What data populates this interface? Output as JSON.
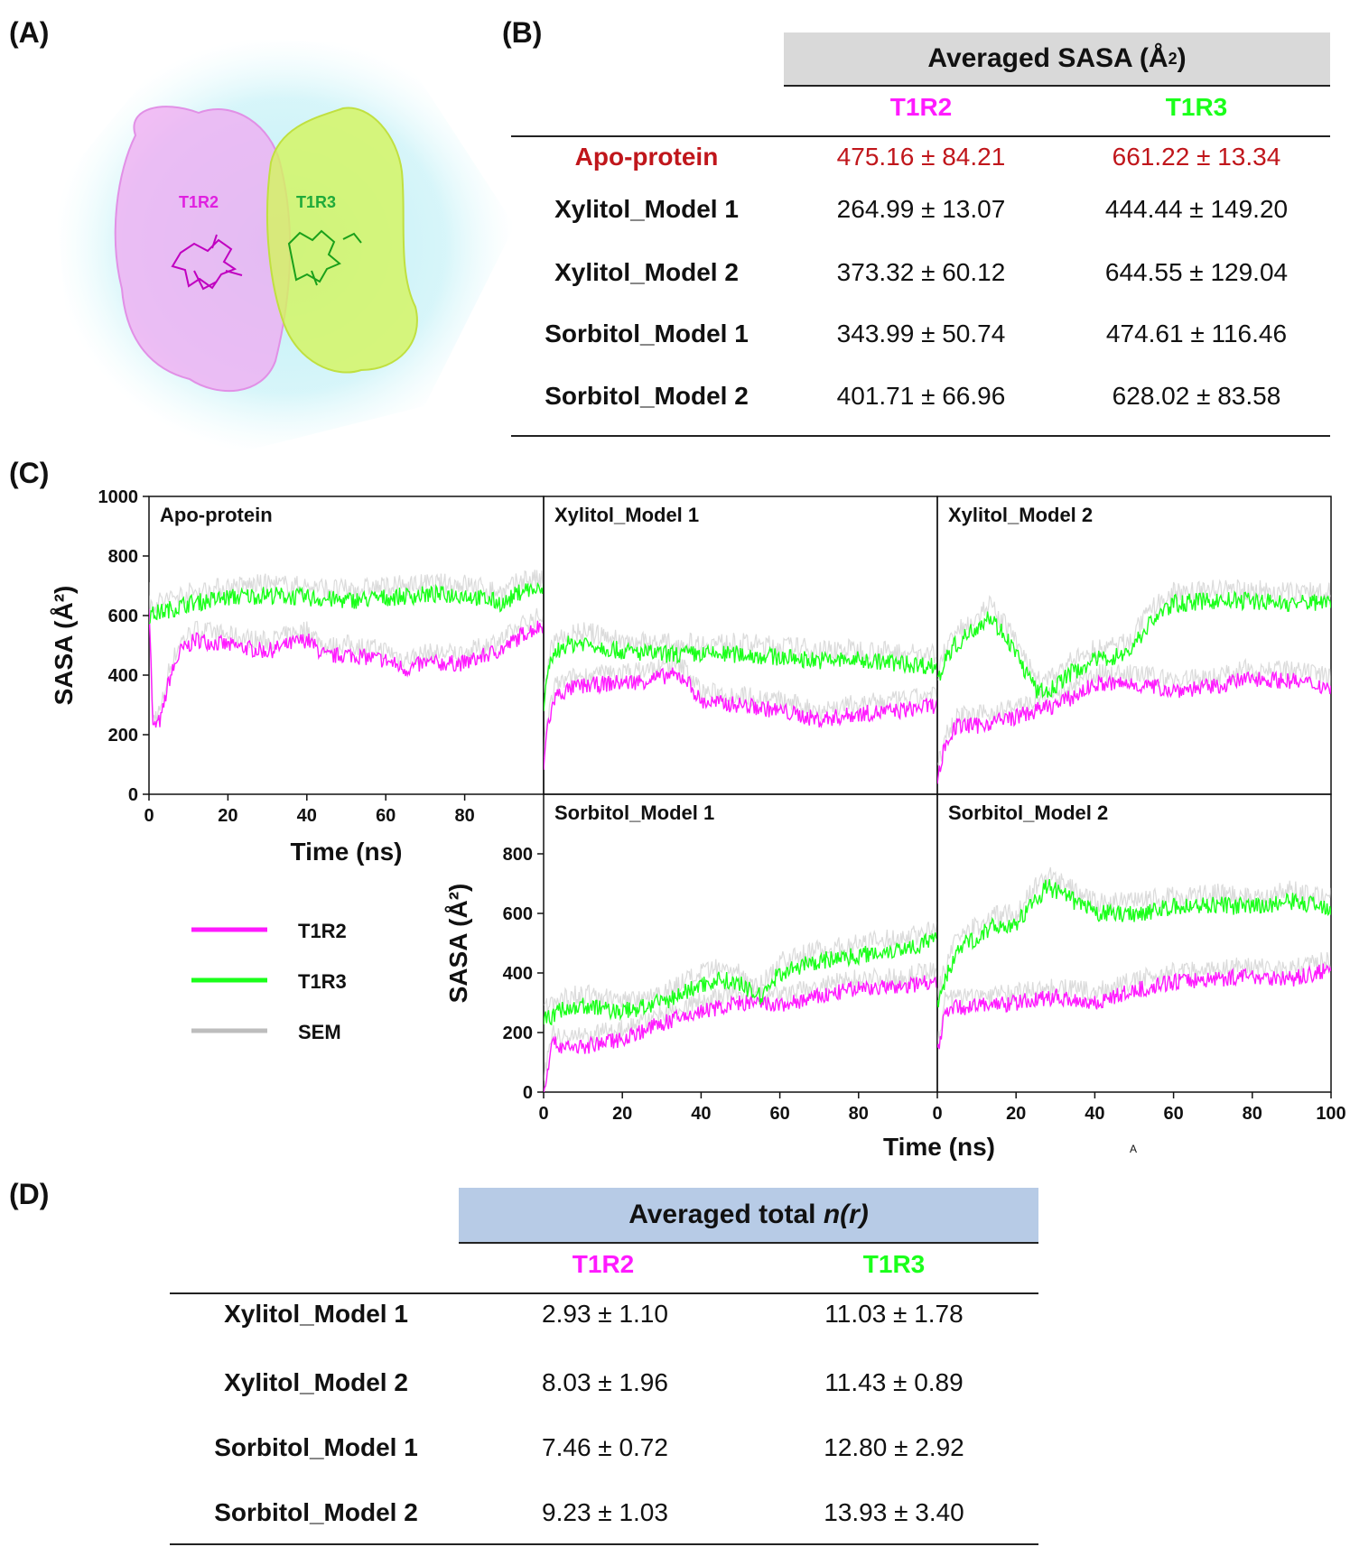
{
  "panels": {
    "a": "(A)",
    "b": "(B)",
    "c": "(C)",
    "d": "(D)"
  },
  "colors": {
    "t1r2": "#ff1aff",
    "t1r3": "#1aff1a",
    "sem": "#bdbdbd",
    "apo": "#c0161b",
    "headerB": "#d9d9d9",
    "headerD": "#b7cbe6"
  },
  "structure": {
    "t1r2_label": "T1R2",
    "t1r3_label": "T1R3"
  },
  "tableB": {
    "header_text": "Averaged SASA (Å",
    "header_sup": "2",
    "header_close": ")",
    "col1": "T1R2",
    "col2": "T1R3",
    "rows": [
      {
        "label": "Apo-protein",
        "t1r2": "475.16 ± 84.21",
        "t1r3": "661.22 ± 13.34"
      },
      {
        "label": "Xylitol_Model 1",
        "t1r2": "264.99 ± 13.07",
        "t1r3": "444.44 ± 149.20"
      },
      {
        "label": "Xylitol_Model 2",
        "t1r2": "373.32 ± 60.12",
        "t1r3": "644.55 ± 129.04"
      },
      {
        "label": "Sorbitol_Model 1",
        "t1r2": "343.99 ± 50.74",
        "t1r3": "474.61 ± 116.46"
      },
      {
        "label": "Sorbitol_Model 2",
        "t1r2": "401.71 ± 66.96",
        "t1r3": "628.02 ± 83.58"
      }
    ]
  },
  "tableD": {
    "header_text": "Averaged total ",
    "header_italic": "n(r)",
    "col1": "T1R2",
    "col2": "T1R3",
    "rows": [
      {
        "label": "Xylitol_Model 1",
        "t1r2": "2.93 ± 1.10",
        "t1r3": "11.03 ± 1.78"
      },
      {
        "label": "Xylitol_Model 2",
        "t1r2": "8.03 ± 1.96",
        "t1r3": "11.43 ± 0.89"
      },
      {
        "label": "Sorbitol_Model 1",
        "t1r2": "7.46 ± 0.72",
        "t1r3": "12.80 ± 2.92"
      },
      {
        "label": "Sorbitol_Model 2",
        "t1r2": "9.23 ± 1.03",
        "t1r3": "13.93 ± 3.40"
      }
    ]
  },
  "legend": {
    "items": [
      "T1R2",
      "T1R3",
      "SEM"
    ]
  },
  "stray_mark": "A",
  "chart_data": [
    {
      "type": "line",
      "title": "Apo-protein",
      "xlabel": "Time (ns)",
      "ylabel": "SASA (Å²)",
      "xlim": [
        0,
        100
      ],
      "ylim": [
        0,
        1000
      ],
      "xticks": [
        0,
        20,
        40,
        60,
        80
      ],
      "yticks": [
        0,
        200,
        400,
        600,
        800,
        1000
      ],
      "series": [
        {
          "name": "T1R2",
          "x": [
            0,
            1,
            3,
            5,
            8,
            12,
            20,
            30,
            40,
            45,
            50,
            60,
            65,
            70,
            80,
            90,
            95,
            100
          ],
          "values": [
            650,
            220,
            250,
            380,
            480,
            520,
            500,
            480,
            520,
            460,
            470,
            450,
            420,
            440,
            440,
            490,
            540,
            570
          ]
        },
        {
          "name": "T1R3",
          "x": [
            0,
            5,
            10,
            20,
            30,
            40,
            50,
            60,
            70,
            80,
            90,
            95,
            100
          ],
          "values": [
            600,
            620,
            640,
            660,
            670,
            660,
            650,
            660,
            670,
            670,
            640,
            690,
            680
          ]
        }
      ]
    },
    {
      "type": "line",
      "title": "Xylitol_Model 1",
      "xlim": [
        0,
        100
      ],
      "ylim": [
        0,
        1000
      ],
      "series": [
        {
          "name": "T1R2",
          "x": [
            0,
            1,
            3,
            8,
            15,
            25,
            32,
            36,
            40,
            50,
            60,
            70,
            80,
            90,
            100
          ],
          "values": [
            100,
            230,
            330,
            360,
            370,
            380,
            400,
            390,
            310,
            300,
            280,
            250,
            270,
            280,
            300
          ]
        },
        {
          "name": "T1R3",
          "x": [
            0,
            2,
            5,
            10,
            20,
            30,
            40,
            50,
            60,
            70,
            80,
            90,
            100
          ],
          "values": [
            300,
            460,
            500,
            510,
            480,
            470,
            470,
            470,
            460,
            450,
            450,
            440,
            430
          ]
        }
      ]
    },
    {
      "type": "line",
      "title": "Xylitol_Model 2",
      "xlim": [
        0,
        100
      ],
      "ylim": [
        0,
        1000
      ],
      "series": [
        {
          "name": "T1R2",
          "x": [
            0,
            2,
            5,
            10,
            20,
            30,
            35,
            40,
            50,
            60,
            70,
            80,
            90,
            100
          ],
          "values": [
            50,
            170,
            230,
            230,
            260,
            300,
            330,
            370,
            370,
            350,
            360,
            390,
            380,
            360
          ]
        },
        {
          "name": "T1R3",
          "x": [
            0,
            3,
            8,
            13,
            18,
            25,
            28,
            33,
            40,
            48,
            55,
            60,
            70,
            80,
            90,
            100
          ],
          "values": [
            380,
            480,
            540,
            600,
            520,
            350,
            340,
            400,
            450,
            470,
            590,
            640,
            650,
            650,
            640,
            650
          ]
        }
      ]
    },
    {
      "type": "line",
      "title": "Sorbitol_Model 1",
      "xlabel": "Time (ns)",
      "ylabel": "SASA (Å²)",
      "xlim": [
        0,
        100
      ],
      "ylim": [
        0,
        1000
      ],
      "xticks": [
        0,
        20,
        40,
        60,
        80
      ],
      "yticks": [
        0,
        200,
        400,
        600,
        800
      ],
      "series": [
        {
          "name": "T1R2",
          "x": [
            0,
            2,
            10,
            20,
            30,
            40,
            50,
            60,
            70,
            80,
            90,
            100
          ],
          "values": [
            0,
            160,
            150,
            180,
            230,
            270,
            300,
            290,
            320,
            350,
            350,
            380
          ]
        },
        {
          "name": "T1R3",
          "x": [
            0,
            5,
            10,
            20,
            30,
            40,
            45,
            50,
            55,
            60,
            70,
            80,
            90,
            100
          ],
          "values": [
            240,
            280,
            290,
            270,
            300,
            360,
            380,
            360,
            320,
            400,
            440,
            460,
            480,
            510
          ]
        }
      ]
    },
    {
      "type": "line",
      "title": "Sorbitol_Model 2",
      "xlim": [
        0,
        100
      ],
      "ylim": [
        0,
        1000
      ],
      "xticks": [
        0,
        20,
        40,
        60,
        80,
        100
      ],
      "series": [
        {
          "name": "T1R2",
          "x": [
            0,
            2,
            10,
            20,
            30,
            40,
            50,
            60,
            70,
            80,
            90,
            100
          ],
          "values": [
            130,
            280,
            290,
            300,
            320,
            300,
            340,
            370,
            380,
            390,
            380,
            410
          ]
        },
        {
          "name": "T1R3",
          "x": [
            0,
            5,
            10,
            15,
            20,
            25,
            28,
            35,
            40,
            50,
            60,
            70,
            80,
            90,
            100
          ],
          "values": [
            300,
            480,
            520,
            560,
            560,
            650,
            690,
            640,
            600,
            600,
            620,
            630,
            620,
            640,
            620
          ]
        }
      ]
    }
  ]
}
